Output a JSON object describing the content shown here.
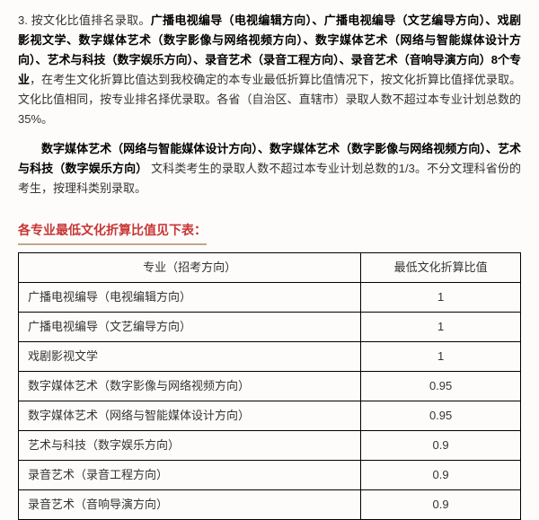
{
  "para1": {
    "prefix": "3. 按文化比值排名录取。",
    "bold": "广播电视编导（电视编辑方向）、广播电视编导（文艺编导方向）、戏剧影视文学、数字媒体艺术（数字影像与网络视频方向）、数字媒体艺术（网络与智能媒体设计方向）、艺术与科技（数字娱乐方向）、录音艺术（录音工程方向）、录音艺术（音响导演方向）8个专业",
    "tail": "，在考生文化折算比值达到我校确定的本专业最低折算比值情况下，按文化折算比值择优录取。文化比值相同，按专业排名择优录取。各省（自治区、直辖市）录取人数不超过本专业计划总数的35%。"
  },
  "para2": {
    "bold": "数字媒体艺术（网络与智能媒体设计方向）、数字媒体艺术（数字影像与网络视频方向）、艺术与科技（数字娱乐方向）",
    "tail": " 文科类考生的录取人数不超过本专业计划总数的1/3。不分文理科省份的考生，按理科类别录取。"
  },
  "table_title": "各专业最低文化折算比值见下表：",
  "table": {
    "columns": [
      "专业（招考方向）",
      "最低文化折算比值"
    ],
    "rows": [
      [
        "广播电视编导（电视编辑方向）",
        "1"
      ],
      [
        "广播电视编导（文艺编导方向）",
        "1"
      ],
      [
        "戏剧影视文学",
        "1"
      ],
      [
        "数字媒体艺术（数字影像与网络视频方向）",
        "0.95"
      ],
      [
        "数字媒体艺术（网络与智能媒体设计方向）",
        "0.95"
      ],
      [
        "艺术与科技（数字娱乐方向）",
        "0.9"
      ],
      [
        "录音艺术（录音工程方向）",
        "0.9"
      ],
      [
        "录音艺术（音响导演方向）",
        "0.9"
      ]
    ],
    "border_color": "#000000",
    "header_align": "center",
    "col1_align": "left",
    "col2_align": "center"
  },
  "colors": {
    "background": "#fdfcfb",
    "title_red": "#c93535",
    "title_underline": "#bfa88c",
    "text": "#333333"
  }
}
